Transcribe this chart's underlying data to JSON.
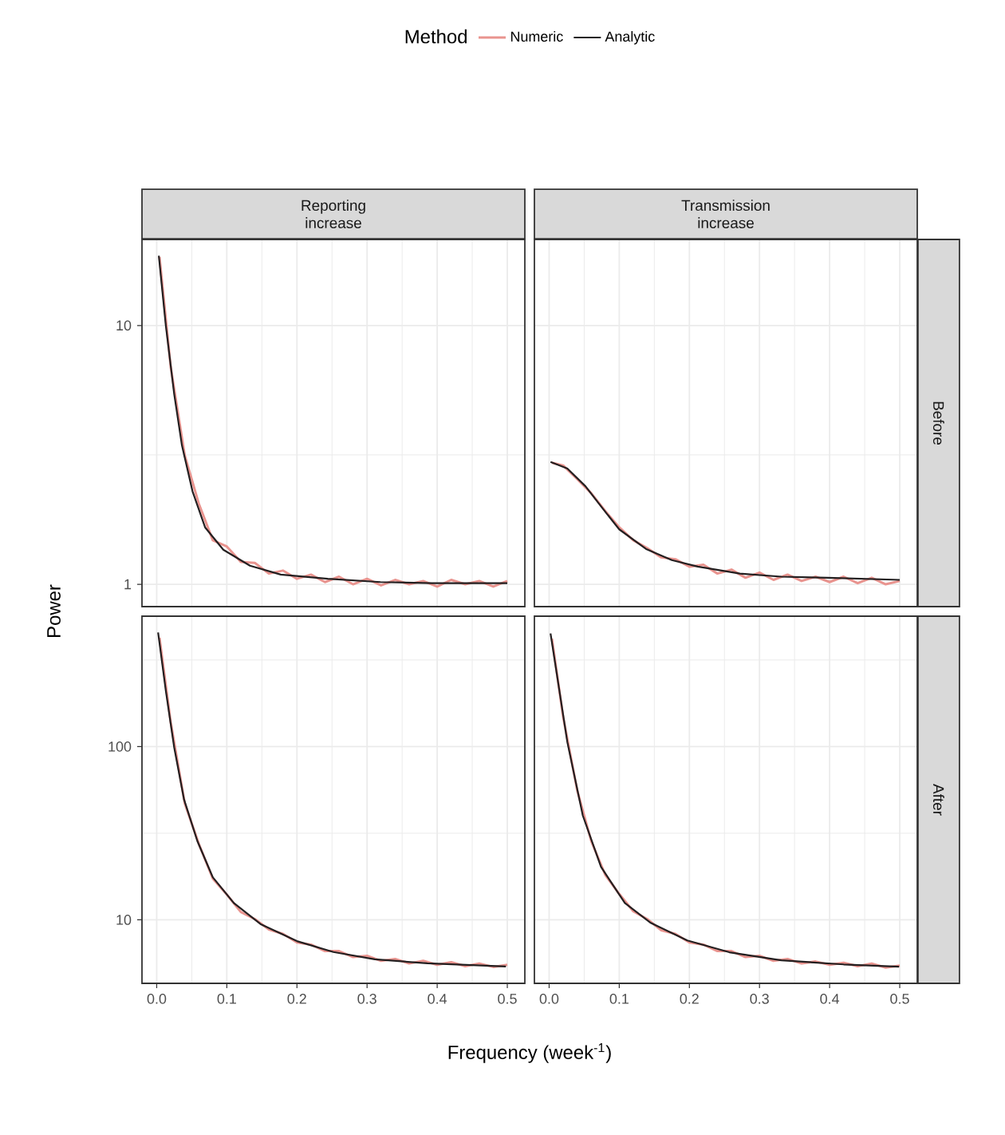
{
  "chart_data": [
    {
      "type": "line",
      "title": "Reporting increase",
      "ylabel": "Power",
      "legend": "top",
      "legend_title": "Method",
      "log": "y",
      "grid": true,
      "tick_labels": "y",
      "xlim": [
        -0.021,
        0.525
      ],
      "ylim": [
        0.82,
        21.5
      ],
      "xticks": [
        0,
        0.1,
        0.2,
        0.3,
        0.4,
        0.5
      ],
      "yticks": [
        1,
        10
      ],
      "series": [
        {
          "name": "Numeric",
          "color": "#e9948f",
          "x": [
            0.004,
            0.02,
            0.04,
            0.06,
            0.08,
            0.1,
            0.12,
            0.14,
            0.16,
            0.18,
            0.2,
            0.22,
            0.24,
            0.26,
            0.28,
            0.3,
            0.32,
            0.34,
            0.36,
            0.38,
            0.4,
            0.42,
            0.44,
            0.46,
            0.48,
            0.5
          ],
          "values": [
            18.4,
            6.9,
            3.15,
            2.05,
            1.48,
            1.4,
            1.22,
            1.21,
            1.1,
            1.13,
            1.05,
            1.09,
            1.02,
            1.07,
            1.0,
            1.05,
            0.99,
            1.04,
            1.0,
            1.03,
            0.98,
            1.04,
            1.0,
            1.03,
            0.98,
            1.03
          ]
        },
        {
          "name": "Analytic",
          "color": "#231f20",
          "x": [
            0.003,
            0.013,
            0.025,
            0.036,
            0.051,
            0.069,
            0.095,
            0.133,
            0.177,
            0.244,
            0.319,
            0.393,
            0.5
          ],
          "values": [
            18.6,
            10,
            5.42,
            3.44,
            2.29,
            1.66,
            1.36,
            1.18,
            1.09,
            1.05,
            1.02,
            1.01,
            1.01
          ]
        }
      ]
    },
    {
      "type": "line",
      "title": "Transmission increase",
      "y2label": "Before",
      "log": "y",
      "grid": true,
      "tick_labels": false,
      "xlim": [
        -0.021,
        0.525
      ],
      "ylim": [
        0.82,
        21.5
      ],
      "xticks": [
        0,
        0.1,
        0.2,
        0.3,
        0.4,
        0.5
      ],
      "yticks": [
        1,
        10
      ],
      "series": [
        {
          "color": "#e9948f",
          "x": [
            0.004,
            0.02,
            0.04,
            0.06,
            0.08,
            0.1,
            0.12,
            0.14,
            0.16,
            0.18,
            0.2,
            0.22,
            0.24,
            0.26,
            0.28,
            0.3,
            0.32,
            0.34,
            0.36,
            0.38,
            0.4,
            0.42,
            0.44,
            0.46,
            0.48,
            0.5
          ],
          "values": [
            2.95,
            2.88,
            2.55,
            2.25,
            1.92,
            1.66,
            1.48,
            1.38,
            1.27,
            1.25,
            1.17,
            1.19,
            1.1,
            1.14,
            1.06,
            1.11,
            1.04,
            1.09,
            1.03,
            1.07,
            1.02,
            1.07,
            1.01,
            1.06,
            1.0,
            1.03
          ]
        },
        {
          "color": "#231f20",
          "x": [
            0.002,
            0.026,
            0.052,
            0.074,
            0.1,
            0.138,
            0.175,
            0.212,
            0.272,
            0.331,
            0.398,
            0.5
          ],
          "values": [
            2.97,
            2.8,
            2.39,
            2.0,
            1.63,
            1.37,
            1.24,
            1.17,
            1.1,
            1.07,
            1.06,
            1.04
          ]
        }
      ]
    },
    {
      "type": "line",
      "xlabel": "Frequency (week$^{-1}$)",
      "log": "y",
      "grid": true,
      "xlim": [
        -0.021,
        0.525
      ],
      "ylim": [
        4.3,
        566
      ],
      "xticks": [
        {
          "value": 0,
          "label": "0.0"
        },
        0.1,
        0.2,
        0.3,
        0.4,
        0.5
      ],
      "yticks": [
        10,
        100
      ],
      "series": [
        {
          "color": "#e9948f",
          "x": [
            0.004,
            0.02,
            0.04,
            0.06,
            0.08,
            0.1,
            0.12,
            0.14,
            0.16,
            0.18,
            0.2,
            0.22,
            0.24,
            0.26,
            0.28,
            0.3,
            0.32,
            0.34,
            0.36,
            0.38,
            0.4,
            0.42,
            0.44,
            0.46,
            0.48,
            0.5
          ],
          "values": [
            425,
            138,
            47,
            27.5,
            17.3,
            14.0,
            11.1,
            10.1,
            8.8,
            8.3,
            7.4,
            7.2,
            6.6,
            6.6,
            6.1,
            6.2,
            5.8,
            5.95,
            5.6,
            5.8,
            5.5,
            5.7,
            5.4,
            5.6,
            5.35,
            5.5
          ]
        },
        {
          "color": "#231f20",
          "x": [
            0.002,
            0.013,
            0.025,
            0.039,
            0.058,
            0.08,
            0.11,
            0.148,
            0.2,
            0.252,
            0.311,
            0.386,
            0.498
          ],
          "values": [
            456,
            210,
            98.6,
            49.5,
            28.5,
            17.6,
            12.5,
            9.46,
            7.54,
            6.52,
            5.92,
            5.61,
            5.38
          ]
        }
      ]
    },
    {
      "type": "line",
      "y2label": "After",
      "log": "y",
      "grid": true,
      "tick_labels": "x",
      "xlim": [
        -0.021,
        0.525
      ],
      "ylim": [
        4.3,
        566
      ],
      "xticks": [
        {
          "value": 0,
          "label": "0.0"
        },
        0.1,
        0.2,
        0.3,
        0.4,
        0.5
      ],
      "yticks": [
        10,
        100
      ],
      "series": [
        {
          "color": "#e9948f",
          "x": [
            0.004,
            0.02,
            0.04,
            0.06,
            0.08,
            0.1,
            0.12,
            0.14,
            0.16,
            0.18,
            0.2,
            0.22,
            0.24,
            0.26,
            0.28,
            0.3,
            0.32,
            0.34,
            0.36,
            0.38,
            0.4,
            0.42,
            0.44,
            0.46,
            0.48,
            0.5
          ],
          "values": [
            420,
            148,
            56,
            28.5,
            18.2,
            14.1,
            11.2,
            10.1,
            8.7,
            8.3,
            7.4,
            7.2,
            6.6,
            6.6,
            6.1,
            6.2,
            5.8,
            5.95,
            5.6,
            5.75,
            5.5,
            5.65,
            5.4,
            5.6,
            5.3,
            5.45
          ]
        },
        {
          "color": "#231f20",
          "x": [
            0.002,
            0.026,
            0.048,
            0.074,
            0.108,
            0.145,
            0.197,
            0.257,
            0.331,
            0.42,
            0.499
          ],
          "values": [
            450,
            106,
            40,
            20.2,
            12.5,
            9.6,
            7.6,
            6.5,
            5.84,
            5.53,
            5.37
          ]
        }
      ]
    }
  ]
}
